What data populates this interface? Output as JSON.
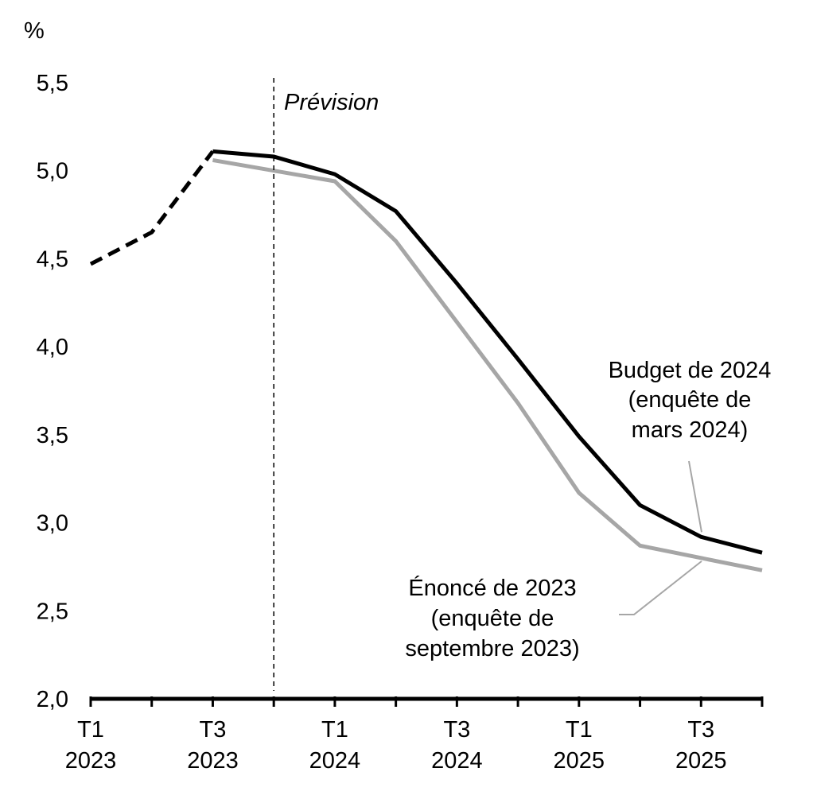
{
  "chart_data": {
    "type": "line",
    "ylabel": "%",
    "ylim": [
      2.0,
      5.5
    ],
    "yticks": [
      "2,0",
      "2,5",
      "3,0",
      "3,5",
      "4,0",
      "4,5",
      "5,0",
      "5,5"
    ],
    "x": [
      "T1 2023",
      "T2 2023",
      "T3 2023",
      "T4 2023",
      "T1 2024",
      "T2 2024",
      "T3 2024",
      "T4 2024",
      "T1 2025",
      "T2 2025",
      "T3 2025",
      "T4 2025"
    ],
    "xtick_labels": [
      {
        "top": "T1",
        "bottom": "2023"
      },
      {
        "top": "T3",
        "bottom": "2023"
      },
      {
        "top": "T1",
        "bottom": "2024"
      },
      {
        "top": "T3",
        "bottom": "2024"
      },
      {
        "top": "T1",
        "bottom": "2025"
      },
      {
        "top": "T3",
        "bottom": "2025"
      }
    ],
    "forecast_label": "Prévision",
    "series": [
      {
        "annotation": [
          "Budget de 2024",
          "(enquête de",
          "mars 2024)"
        ],
        "color": "#000000",
        "values": [
          4.47,
          4.65,
          5.11,
          5.08,
          4.98,
          4.77,
          4.36,
          3.93,
          3.49,
          3.1,
          2.92,
          2.83
        ]
      },
      {
        "annotation": [
          "Énoncé de 2023",
          "(enquête de",
          "septembre 2023)"
        ],
        "color": "#a6a6a6",
        "values": [
          4.47,
          4.65,
          5.06,
          5.0,
          4.94,
          4.6,
          4.14,
          3.68,
          3.17,
          2.87,
          2.8,
          2.73
        ]
      }
    ]
  }
}
